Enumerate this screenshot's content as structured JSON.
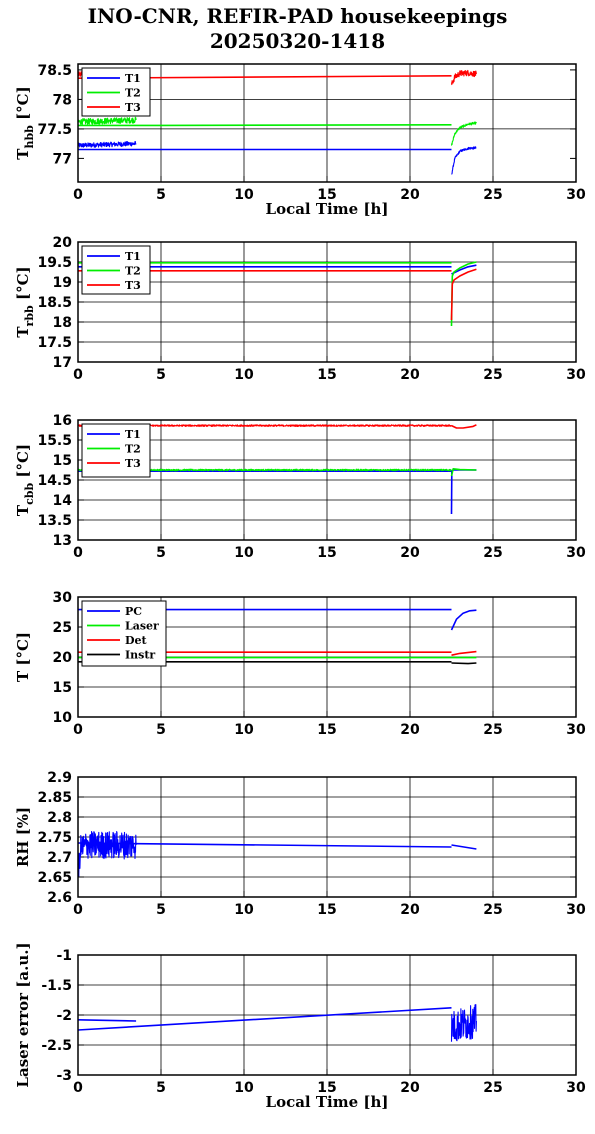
{
  "figure": {
    "title": "INO-CNR, REFIR-PAD housekeepings",
    "subtitle": "20250320-1418"
  },
  "chart_data": [
    {
      "type": "line",
      "ylabel_main": "T",
      "ylabel_sub": "hbb",
      "ylabel_unit": " [°C]",
      "xlabel": "Local Time [h]",
      "xlim": [
        0,
        30
      ],
      "ylim": [
        76.6,
        78.6
      ],
      "xticks": [
        0,
        5,
        10,
        15,
        20,
        25,
        30
      ],
      "yticks": [
        77,
        77.5,
        78,
        78.5
      ],
      "ytick_labels": [
        "77",
        "77.5",
        "78",
        "78.5"
      ],
      "grid": true,
      "legend_position": "top-left",
      "series": [
        {
          "name": "T1",
          "color": "#0000ff",
          "noise": 0.04,
          "segments": [
            {
              "x": [
                0,
                3.5
              ],
              "y": [
                77.22,
                77.25
              ]
            },
            {
              "x": [
                0,
                22.5
              ],
              "y": [
                77.15,
                77.15
              ]
            },
            {
              "x": [
                22.5,
                22.7,
                23.0,
                23.5,
                24.0
              ],
              "y": [
                76.72,
                77.0,
                77.12,
                77.17,
                77.18
              ],
              "noise": 0.02
            }
          ]
        },
        {
          "name": "T2",
          "color": "#00ee00",
          "noise": 0.05,
          "segments": [
            {
              "x": [
                0,
                3.5
              ],
              "y": [
                77.62,
                77.65
              ]
            },
            {
              "x": [
                0,
                5,
                22.5
              ],
              "y": [
                77.56,
                77.56,
                77.57
              ]
            },
            {
              "x": [
                22.5,
                22.7,
                23.0,
                23.5,
                24.0
              ],
              "y": [
                77.22,
                77.42,
                77.52,
                77.58,
                77.6
              ],
              "noise": 0.02
            }
          ]
        },
        {
          "name": "T3",
          "color": "#ff0000",
          "noise": 0.05,
          "segments": [
            {
              "x": [
                0,
                3.5
              ],
              "y": [
                78.42,
                78.45
              ]
            },
            {
              "x": [
                0,
                22.5
              ],
              "y": [
                78.36,
                78.4
              ]
            },
            {
              "x": [
                22.5,
                22.7,
                23.0,
                23.5,
                24.0
              ],
              "y": [
                78.25,
                78.38,
                78.44,
                78.45,
                78.43
              ],
              "noise": 0.05
            }
          ]
        }
      ]
    },
    {
      "type": "line",
      "ylabel_main": "T",
      "ylabel_sub": "rbb",
      "ylabel_unit": " [°C]",
      "xlabel": "",
      "xlim": [
        0,
        30
      ],
      "ylim": [
        17,
        20
      ],
      "xticks": [
        0,
        5,
        10,
        15,
        20,
        25,
        30
      ],
      "yticks": [
        17,
        17.5,
        18,
        18.5,
        19,
        19.5,
        20
      ],
      "ytick_labels": [
        "17",
        "17.5",
        "18",
        "18.5",
        "19",
        "19.5",
        "20"
      ],
      "grid": true,
      "legend_position": "top-left",
      "series": [
        {
          "name": "T1",
          "color": "#0000ff",
          "noise": 0,
          "segments": [
            {
              "x": [
                0,
                22.5
              ],
              "y": [
                19.38,
                19.38
              ]
            },
            {
              "x": [
                22.5,
                23.0,
                23.5,
                24.0
              ],
              "y": [
                19.2,
                19.3,
                19.38,
                19.42
              ]
            }
          ]
        },
        {
          "name": "T2",
          "color": "#00ee00",
          "noise": 0,
          "segments": [
            {
              "x": [
                0,
                22.5
              ],
              "y": [
                19.48,
                19.48
              ]
            },
            {
              "x": [
                22.5,
                22.55,
                22.65,
                23.0,
                23.5,
                24.0
              ],
              "y": [
                17.9,
                19.15,
                19.25,
                19.35,
                19.45,
                19.5
              ]
            }
          ]
        },
        {
          "name": "T3",
          "color": "#ff0000",
          "noise": 0,
          "segments": [
            {
              "x": [
                0,
                22.5
              ],
              "y": [
                19.28,
                19.28
              ]
            },
            {
              "x": [
                22.5,
                22.55,
                22.65,
                23.0,
                23.5,
                24.0
              ],
              "y": [
                18.05,
                18.95,
                19.05,
                19.15,
                19.25,
                19.32
              ]
            }
          ]
        }
      ]
    },
    {
      "type": "line",
      "ylabel_main": "T",
      "ylabel_sub": "cbb",
      "ylabel_unit": " [°C]",
      "xlabel": "",
      "xlim": [
        0,
        30
      ],
      "ylim": [
        13,
        16
      ],
      "xticks": [
        0,
        5,
        10,
        15,
        20,
        25,
        30
      ],
      "yticks": [
        13,
        13.5,
        14,
        14.5,
        15,
        15.5,
        16
      ],
      "ytick_labels": [
        "13",
        "13.5",
        "14",
        "14.5",
        "15",
        "15.5",
        "16"
      ],
      "grid": true,
      "legend_position": "top-left",
      "series": [
        {
          "name": "T1",
          "color": "#0000ff",
          "noise": 0,
          "segments": [
            {
              "x": [
                0,
                22.5
              ],
              "y": [
                14.72,
                14.72
              ]
            },
            {
              "x": [
                22.5,
                22.52,
                22.6,
                24.0
              ],
              "y": [
                13.65,
                14.72,
                14.75,
                14.75
              ]
            }
          ]
        },
        {
          "name": "T2",
          "color": "#00ee00",
          "noise": 0.02,
          "segments": [
            {
              "x": [
                0,
                22.5
              ],
              "y": [
                14.75,
                14.75
              ]
            },
            {
              "x": [
                22.5,
                22.6,
                23.0,
                24.0
              ],
              "y": [
                14.6,
                14.78,
                14.76,
                14.75
              ]
            }
          ]
        },
        {
          "name": "T3",
          "color": "#ff0000",
          "noise": 0.02,
          "segments": [
            {
              "x": [
                0,
                22.5
              ],
              "y": [
                15.86,
                15.86
              ]
            },
            {
              "x": [
                22.5,
                22.8,
                23.2,
                23.8,
                24.0
              ],
              "y": [
                15.86,
                15.8,
                15.8,
                15.84,
                15.88
              ]
            }
          ]
        }
      ]
    },
    {
      "type": "line",
      "ylabel_main": "T [°C]",
      "ylabel_sub": "",
      "ylabel_unit": "",
      "xlabel": "",
      "xlim": [
        0,
        30
      ],
      "ylim": [
        10,
        30
      ],
      "xticks": [
        0,
        5,
        10,
        15,
        20,
        25,
        30
      ],
      "yticks": [
        10,
        15,
        20,
        25,
        30
      ],
      "ytick_labels": [
        "10",
        "15",
        "20",
        "25",
        "30"
      ],
      "grid": true,
      "legend_position": "top-left",
      "series": [
        {
          "name": "PC",
          "color": "#0000ff",
          "noise": 0,
          "segments": [
            {
              "x": [
                0,
                22.5
              ],
              "y": [
                27.9,
                27.9
              ]
            },
            {
              "x": [
                22.5,
                22.8,
                23.2,
                23.6,
                24.0
              ],
              "y": [
                24.5,
                26.3,
                27.3,
                27.7,
                27.8
              ]
            }
          ]
        },
        {
          "name": "Laser",
          "color": "#00ee00",
          "noise": 0,
          "segments": [
            {
              "x": [
                0,
                24.0
              ],
              "y": [
                19.9,
                19.9
              ]
            }
          ]
        },
        {
          "name": "Det",
          "color": "#ff0000",
          "noise": 0,
          "segments": [
            {
              "x": [
                0,
                22.5
              ],
              "y": [
                20.8,
                20.8
              ]
            },
            {
              "x": [
                22.5,
                23.0,
                24.0
              ],
              "y": [
                20.3,
                20.6,
                20.9
              ]
            }
          ]
        },
        {
          "name": "Instr",
          "color": "#000000",
          "noise": 0,
          "segments": [
            {
              "x": [
                0,
                22.5
              ],
              "y": [
                19.2,
                19.2
              ]
            },
            {
              "x": [
                22.5,
                23.5,
                24.0
              ],
              "y": [
                19.0,
                18.9,
                19.0
              ]
            }
          ]
        }
      ]
    },
    {
      "type": "line",
      "ylabel_main": "RH [%]",
      "ylabel_sub": "",
      "ylabel_unit": "",
      "xlabel": "",
      "xlim": [
        0,
        30
      ],
      "ylim": [
        2.6,
        2.9
      ],
      "xticks": [
        0,
        5,
        10,
        15,
        20,
        25,
        30
      ],
      "yticks": [
        2.6,
        2.65,
        2.7,
        2.75,
        2.8,
        2.85,
        2.9
      ],
      "ytick_labels": [
        "2.6",
        "2.65",
        "2.7",
        "2.75",
        "2.8",
        "2.85",
        "2.9"
      ],
      "grid": true,
      "legend_position": "none",
      "series": [
        {
          "name": "",
          "color": "#0000ff",
          "noise": 0.035,
          "segments": [
            {
              "x": [
                0,
                0.15,
                0.5,
                3.5
              ],
              "y": [
                2.65,
                2.72,
                2.73,
                2.73
              ]
            },
            {
              "x": [
                0,
                22.5
              ],
              "y": [
                2.735,
                2.725
              ]
            },
            {
              "x": [
                22.5,
                24.0
              ],
              "y": [
                2.73,
                2.72
              ]
            }
          ]
        }
      ]
    },
    {
      "type": "line",
      "ylabel_main": "Laser error [a.u.]",
      "ylabel_sub": "",
      "ylabel_unit": "",
      "xlabel": "Local Time [h]",
      "xlim": [
        0,
        30
      ],
      "ylim": [
        -3,
        -1
      ],
      "xticks": [
        0,
        5,
        10,
        15,
        20,
        25,
        30
      ],
      "yticks": [
        -3,
        -2.5,
        -2,
        -1.5,
        -1
      ],
      "ytick_labels": [
        "-3",
        "-2.5",
        "-2",
        "-1.5",
        "-1"
      ],
      "grid": true,
      "legend_position": "none",
      "series": [
        {
          "name": "",
          "color": "#0000ff",
          "noise": 0,
          "segments": [
            {
              "x": [
                0,
                3.5
              ],
              "y": [
                -2.08,
                -2.1
              ]
            },
            {
              "x": [
                0,
                22.5
              ],
              "y": [
                -2.25,
                -1.88
              ]
            },
            {
              "x": [
                22.5,
                24.0
              ],
              "y": [
                -2.2,
                -2.1
              ],
              "noise": 0.28
            }
          ]
        }
      ]
    }
  ]
}
